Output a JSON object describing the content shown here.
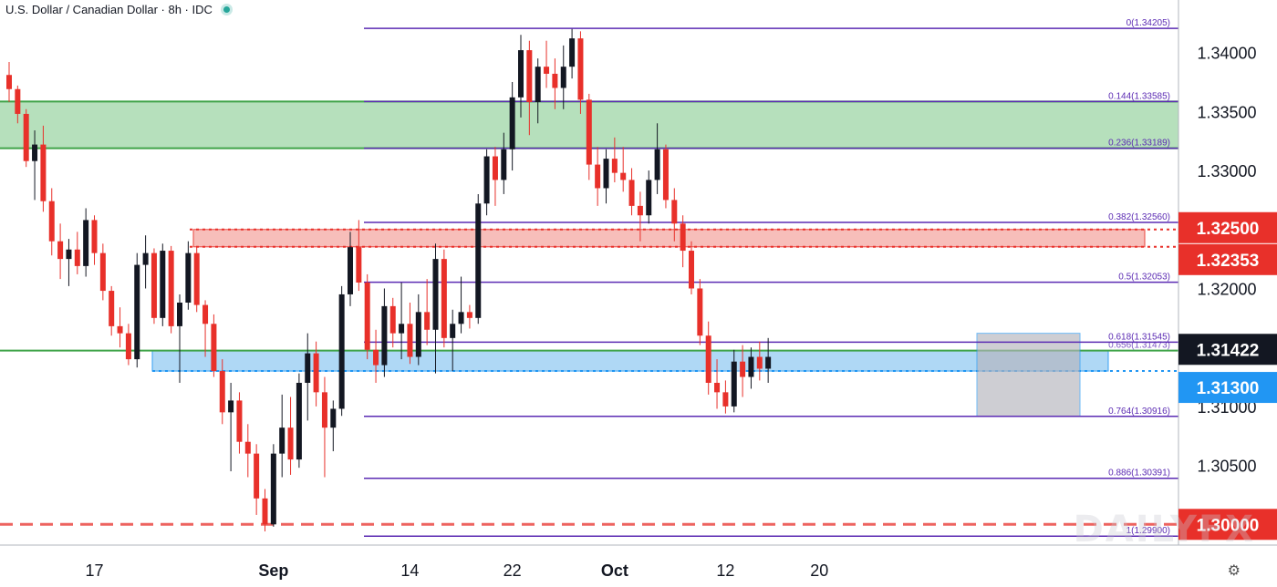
{
  "header": {
    "title": "U.S. Dollar / Canadian Dollar · 8h · IDC"
  },
  "watermark": "DAILYFX",
  "colors": {
    "up": "#131722",
    "down": "#e8302a",
    "fib": "#5b2bb3",
    "green_zone": "#a9dbb0",
    "green_line": "#3fa348",
    "red_zone": "#f7b7b3",
    "blue_zone": "#a7d4f5",
    "grey_box": "#b4b4bd",
    "axis_text": "#131722"
  },
  "chart_data": {
    "type": "candlestick",
    "title": "U.S. Dollar / Canadian Dollar · 8h · IDC",
    "ylim": [
      1.2984,
      1.3443
    ],
    "y_ticks": [
      "1.34000",
      "1.33500",
      "1.33000",
      "1.32000",
      "1.31000",
      "1.30500"
    ],
    "x_ticks": [
      {
        "label": "17",
        "idx": 10
      },
      {
        "label": "Sep",
        "idx": 31
      },
      {
        "label": "14",
        "idx": 47
      },
      {
        "label": "22",
        "idx": 59
      },
      {
        "label": "Oct",
        "idx": 71
      },
      {
        "label": "12",
        "idx": 84
      },
      {
        "label": "20",
        "idx": 95
      }
    ],
    "fib_levels": [
      {
        "label": "0(1.34205)",
        "value": 1.34205
      },
      {
        "label": "0.144(1.33585)",
        "value": 1.33585
      },
      {
        "label": "0.236(1.33189)",
        "value": 1.33189
      },
      {
        "label": "0.382(1.32560)",
        "value": 1.3256
      },
      {
        "label": "0.5(1.32053)",
        "value": 1.32053
      },
      {
        "label": "0.618(1.31545)",
        "value": 1.31545
      },
      {
        "label": "0.764(1.30916)",
        "value": 1.30916
      },
      {
        "label": "0.886(1.30391)",
        "value": 1.30391
      },
      {
        "label": "1(1.29900)",
        "value": 1.299
      }
    ],
    "fib_overlap_label": "0.656(1.31473)",
    "price_labels": [
      {
        "label": "1.32500",
        "value": 1.325,
        "color": "#e8302a"
      },
      {
        "label": "1.32353",
        "value": 1.32353,
        "color": "#e8302a"
      },
      {
        "label": "1.31422",
        "value": 1.31422,
        "color": "#131722"
      },
      {
        "label": "1.31300",
        "value": 1.313,
        "color": "#2196f3"
      },
      {
        "label": "1.30000",
        "value": 1.3,
        "color": "#e8302a"
      }
    ],
    "zones": [
      {
        "name": "green-resistance-zone",
        "from": 1.33189,
        "to": 1.33585
      },
      {
        "name": "red-resistance-zone",
        "from": 1.32353,
        "to": 1.325
      },
      {
        "name": "blue-support-zone",
        "from": 1.313,
        "to": 1.31473
      },
      {
        "name": "grey-consolidation-box",
        "from": 1.30916,
        "to": 1.3162
      }
    ],
    "candles": [
      {
        "o": 1.3381,
        "h": 1.3392,
        "l": 1.3358,
        "c": 1.3369
      },
      {
        "o": 1.3369,
        "h": 1.3372,
        "l": 1.334,
        "c": 1.3348
      },
      {
        "o": 1.3348,
        "h": 1.3352,
        "l": 1.3303,
        "c": 1.3308
      },
      {
        "o": 1.3308,
        "h": 1.3334,
        "l": 1.3275,
        "c": 1.3322
      },
      {
        "o": 1.3322,
        "h": 1.3338,
        "l": 1.3265,
        "c": 1.3274
      },
      {
        "o": 1.3274,
        "h": 1.3285,
        "l": 1.3228,
        "c": 1.324
      },
      {
        "o": 1.324,
        "h": 1.3255,
        "l": 1.3208,
        "c": 1.3225
      },
      {
        "o": 1.3225,
        "h": 1.3242,
        "l": 1.3202,
        "c": 1.3233
      },
      {
        "o": 1.3233,
        "h": 1.3248,
        "l": 1.3212,
        "c": 1.3219
      },
      {
        "o": 1.3219,
        "h": 1.3268,
        "l": 1.321,
        "c": 1.3258
      },
      {
        "o": 1.3258,
        "h": 1.3262,
        "l": 1.322,
        "c": 1.323
      },
      {
        "o": 1.323,
        "h": 1.3238,
        "l": 1.319,
        "c": 1.3198
      },
      {
        "o": 1.3198,
        "h": 1.3202,
        "l": 1.316,
        "c": 1.3168
      },
      {
        "o": 1.3168,
        "h": 1.3184,
        "l": 1.315,
        "c": 1.3162
      },
      {
        "o": 1.3162,
        "h": 1.317,
        "l": 1.3135,
        "c": 1.314
      },
      {
        "o": 1.314,
        "h": 1.323,
        "l": 1.3133,
        "c": 1.322
      },
      {
        "o": 1.322,
        "h": 1.3245,
        "l": 1.32,
        "c": 1.323
      },
      {
        "o": 1.323,
        "h": 1.3234,
        "l": 1.317,
        "c": 1.3175
      },
      {
        "o": 1.3175,
        "h": 1.3238,
        "l": 1.3168,
        "c": 1.3232
      },
      {
        "o": 1.3232,
        "h": 1.3236,
        "l": 1.3162,
        "c": 1.3168
      },
      {
        "o": 1.3168,
        "h": 1.3195,
        "l": 1.312,
        "c": 1.3188
      },
      {
        "o": 1.3188,
        "h": 1.324,
        "l": 1.3182,
        "c": 1.323
      },
      {
        "o": 1.323,
        "h": 1.3236,
        "l": 1.318,
        "c": 1.3186
      },
      {
        "o": 1.3186,
        "h": 1.319,
        "l": 1.3142,
        "c": 1.317
      },
      {
        "o": 1.317,
        "h": 1.3178,
        "l": 1.3125,
        "c": 1.313
      },
      {
        "o": 1.313,
        "h": 1.314,
        "l": 1.3085,
        "c": 1.3095
      },
      {
        "o": 1.3095,
        "h": 1.312,
        "l": 1.3045,
        "c": 1.3105
      },
      {
        "o": 1.3105,
        "h": 1.3112,
        "l": 1.306,
        "c": 1.307
      },
      {
        "o": 1.307,
        "h": 1.3085,
        "l": 1.304,
        "c": 1.306
      },
      {
        "o": 1.306,
        "h": 1.3068,
        "l": 1.3008,
        "c": 1.3022
      },
      {
        "o": 1.3022,
        "h": 1.303,
        "l": 1.2994,
        "c": 1.3
      },
      {
        "o": 1.3,
        "h": 1.3068,
        "l": 1.2998,
        "c": 1.306
      },
      {
        "o": 1.306,
        "h": 1.311,
        "l": 1.304,
        "c": 1.3082
      },
      {
        "o": 1.3082,
        "h": 1.3108,
        "l": 1.3042,
        "c": 1.3055
      },
      {
        "o": 1.3055,
        "h": 1.3128,
        "l": 1.3048,
        "c": 1.312
      },
      {
        "o": 1.312,
        "h": 1.3162,
        "l": 1.3088,
        "c": 1.3145
      },
      {
        "o": 1.3145,
        "h": 1.3155,
        "l": 1.31,
        "c": 1.3112
      },
      {
        "o": 1.3112,
        "h": 1.3125,
        "l": 1.304,
        "c": 1.3082
      },
      {
        "o": 1.3082,
        "h": 1.3105,
        "l": 1.3062,
        "c": 1.3098
      },
      {
        "o": 1.3098,
        "h": 1.3202,
        "l": 1.3092,
        "c": 1.3195
      },
      {
        "o": 1.3195,
        "h": 1.3248,
        "l": 1.3185,
        "c": 1.3235
      },
      {
        "o": 1.3235,
        "h": 1.3258,
        "l": 1.3198,
        "c": 1.3205
      },
      {
        "o": 1.3205,
        "h": 1.3212,
        "l": 1.314,
        "c": 1.3148
      },
      {
        "o": 1.3148,
        "h": 1.3165,
        "l": 1.312,
        "c": 1.3135
      },
      {
        "o": 1.3135,
        "h": 1.32,
        "l": 1.3125,
        "c": 1.3185
      },
      {
        "o": 1.3185,
        "h": 1.3192,
        "l": 1.315,
        "c": 1.3162
      },
      {
        "o": 1.3162,
        "h": 1.3205,
        "l": 1.314,
        "c": 1.317
      },
      {
        "o": 1.317,
        "h": 1.3188,
        "l": 1.3136,
        "c": 1.3142
      },
      {
        "o": 1.3142,
        "h": 1.3195,
        "l": 1.3135,
        "c": 1.318
      },
      {
        "o": 1.318,
        "h": 1.3208,
        "l": 1.3152,
        "c": 1.3165
      },
      {
        "o": 1.3165,
        "h": 1.3238,
        "l": 1.3128,
        "c": 1.3225
      },
      {
        "o": 1.3225,
        "h": 1.3233,
        "l": 1.315,
        "c": 1.3158
      },
      {
        "o": 1.3158,
        "h": 1.3182,
        "l": 1.313,
        "c": 1.317
      },
      {
        "o": 1.317,
        "h": 1.321,
        "l": 1.3162,
        "c": 1.318
      },
      {
        "o": 1.318,
        "h": 1.3186,
        "l": 1.3166,
        "c": 1.3175
      },
      {
        "o": 1.3175,
        "h": 1.328,
        "l": 1.317,
        "c": 1.3272
      },
      {
        "o": 1.3272,
        "h": 1.3318,
        "l": 1.3262,
        "c": 1.3312
      },
      {
        "o": 1.3312,
        "h": 1.332,
        "l": 1.327,
        "c": 1.3292
      },
      {
        "o": 1.3292,
        "h": 1.3332,
        "l": 1.328,
        "c": 1.3318
      },
      {
        "o": 1.3318,
        "h": 1.3375,
        "l": 1.33,
        "c": 1.3362
      },
      {
        "o": 1.3362,
        "h": 1.3415,
        "l": 1.3345,
        "c": 1.3402
      },
      {
        "o": 1.3402,
        "h": 1.341,
        "l": 1.333,
        "c": 1.3358
      },
      {
        "o": 1.3358,
        "h": 1.3395,
        "l": 1.334,
        "c": 1.3388
      },
      {
        "o": 1.3388,
        "h": 1.341,
        "l": 1.337,
        "c": 1.3382
      },
      {
        "o": 1.3382,
        "h": 1.3395,
        "l": 1.3352,
        "c": 1.337
      },
      {
        "o": 1.337,
        "h": 1.3406,
        "l": 1.3352,
        "c": 1.3388
      },
      {
        "o": 1.3388,
        "h": 1.342,
        "l": 1.3378,
        "c": 1.3412
      },
      {
        "o": 1.3412,
        "h": 1.3418,
        "l": 1.3348,
        "c": 1.336
      },
      {
        "o": 1.336,
        "h": 1.3365,
        "l": 1.3292,
        "c": 1.3305
      },
      {
        "o": 1.3305,
        "h": 1.332,
        "l": 1.327,
        "c": 1.3285
      },
      {
        "o": 1.3285,
        "h": 1.3318,
        "l": 1.3272,
        "c": 1.331
      },
      {
        "o": 1.331,
        "h": 1.3328,
        "l": 1.329,
        "c": 1.3298
      },
      {
        "o": 1.3298,
        "h": 1.332,
        "l": 1.3282,
        "c": 1.3292
      },
      {
        "o": 1.3292,
        "h": 1.3302,
        "l": 1.3262,
        "c": 1.327
      },
      {
        "o": 1.327,
        "h": 1.3282,
        "l": 1.324,
        "c": 1.3262
      },
      {
        "o": 1.3262,
        "h": 1.33,
        "l": 1.3255,
        "c": 1.3292
      },
      {
        "o": 1.3292,
        "h": 1.334,
        "l": 1.328,
        "c": 1.3318
      },
      {
        "o": 1.3318,
        "h": 1.3322,
        "l": 1.3268,
        "c": 1.3275
      },
      {
        "o": 1.3275,
        "h": 1.3285,
        "l": 1.324,
        "c": 1.3255
      },
      {
        "o": 1.3255,
        "h": 1.3262,
        "l": 1.3218,
        "c": 1.3232
      },
      {
        "o": 1.3232,
        "h": 1.324,
        "l": 1.3195,
        "c": 1.32
      },
      {
        "o": 1.32,
        "h": 1.3208,
        "l": 1.3152,
        "c": 1.316
      },
      {
        "o": 1.316,
        "h": 1.3172,
        "l": 1.311,
        "c": 1.312
      },
      {
        "o": 1.312,
        "h": 1.314,
        "l": 1.3098,
        "c": 1.3112
      },
      {
        "o": 1.3112,
        "h": 1.3122,
        "l": 1.3094,
        "c": 1.31
      },
      {
        "o": 1.31,
        "h": 1.3148,
        "l": 1.3095,
        "c": 1.3138
      },
      {
        "o": 1.3138,
        "h": 1.3152,
        "l": 1.3108,
        "c": 1.3125
      },
      {
        "o": 1.3125,
        "h": 1.315,
        "l": 1.3115,
        "c": 1.3142
      },
      {
        "o": 1.3142,
        "h": 1.3155,
        "l": 1.3122,
        "c": 1.3132
      },
      {
        "o": 1.3132,
        "h": 1.3158,
        "l": 1.312,
        "c": 1.3142
      }
    ]
  }
}
